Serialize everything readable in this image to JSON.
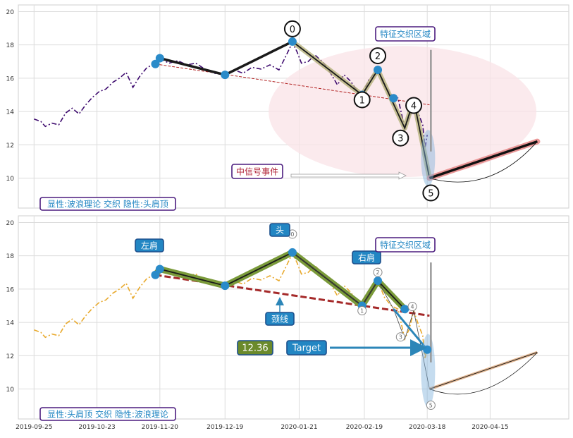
{
  "chart_data": {
    "type": "line",
    "x_ticks": [
      "2019-09-25",
      "2019-10-23",
      "2019-11-20",
      "2019-12-19",
      "2020-01-21",
      "2020-02-19",
      "2020-03-18",
      "2020-04-15"
    ],
    "y_ticks": [
      "10",
      "12",
      "14",
      "16",
      "18",
      "20"
    ],
    "ylim": [
      8.2,
      20.4
    ],
    "grid": true,
    "panels": [
      {
        "series_color": "#3d0a6e",
        "series_style": "dashdot",
        "bottom_label": "显性:波浪理论 交织 隐性:头肩顶",
        "region_label": "特征交织区域",
        "event_label": "中信号事件",
        "wave_labels": [
          "0",
          "1",
          "2",
          "3",
          "4",
          "5"
        ],
        "wave_points": [
          {
            "date": "2020-01-18",
            "value": 18.2
          },
          {
            "date": "2020-02-18",
            "value": 15.0
          },
          {
            "date": "2020-02-25",
            "value": 16.5
          },
          {
            "date": "2020-03-08",
            "value": 13.0
          },
          {
            "date": "2020-03-12",
            "value": 14.7
          },
          {
            "date": "2020-03-19",
            "value": 10.0
          }
        ]
      },
      {
        "series_color": "#e8a92c",
        "series_style": "dashdot",
        "bottom_label": "显性:头肩顶 交织 隐性:波浪理论",
        "region_label": "特征交织区域",
        "left_shoulder": "左肩",
        "head": "头",
        "right_shoulder": "右肩",
        "neckline": "颈线",
        "target_label": "Target",
        "target_value": "12.36"
      }
    ],
    "price_series": [
      {
        "date": "2019-09-25",
        "value": 13.55
      },
      {
        "date": "2019-09-28",
        "value": 13.4
      },
      {
        "date": "2019-09-30",
        "value": 13.1
      },
      {
        "date": "2019-10-03",
        "value": 13.3
      },
      {
        "date": "2019-10-06",
        "value": 13.2
      },
      {
        "date": "2019-10-09",
        "value": 13.9
      },
      {
        "date": "2019-10-12",
        "value": 14.2
      },
      {
        "date": "2019-10-15",
        "value": 13.85
      },
      {
        "date": "2019-10-18",
        "value": 14.4
      },
      {
        "date": "2019-10-21",
        "value": 14.85
      },
      {
        "date": "2019-10-24",
        "value": 15.2
      },
      {
        "date": "2019-10-27",
        "value": 15.35
      },
      {
        "date": "2019-10-30",
        "value": 15.75
      },
      {
        "date": "2019-11-02",
        "value": 16.0
      },
      {
        "date": "2019-11-05",
        "value": 16.35
      },
      {
        "date": "2019-11-08",
        "value": 15.45
      },
      {
        "date": "2019-11-11",
        "value": 16.1
      },
      {
        "date": "2019-11-14",
        "value": 16.6
      },
      {
        "date": "2019-11-17",
        "value": 16.85
      },
      {
        "date": "2019-11-20",
        "value": 17.2
      },
      {
        "date": "2019-11-24",
        "value": 16.9
      },
      {
        "date": "2019-11-28",
        "value": 17.05
      },
      {
        "date": "2019-12-02",
        "value": 16.8
      },
      {
        "date": "2019-12-06",
        "value": 16.9
      },
      {
        "date": "2019-12-10",
        "value": 16.55
      },
      {
        "date": "2019-12-14",
        "value": 16.3
      },
      {
        "date": "2019-12-19",
        "value": 16.2
      },
      {
        "date": "2019-12-23",
        "value": 16.5
      },
      {
        "date": "2019-12-27",
        "value": 16.3
      },
      {
        "date": "2019-12-31",
        "value": 16.65
      },
      {
        "date": "2020-01-04",
        "value": 16.55
      },
      {
        "date": "2020-01-08",
        "value": 16.8
      },
      {
        "date": "2020-01-12",
        "value": 16.5
      },
      {
        "date": "2020-01-15",
        "value": 17.3
      },
      {
        "date": "2020-01-18",
        "value": 18.15
      },
      {
        "date": "2020-01-20",
        "value": 17.6
      },
      {
        "date": "2020-01-22",
        "value": 16.9
      },
      {
        "date": "2020-01-25",
        "value": 17.0
      },
      {
        "date": "2020-01-28",
        "value": 17.4
      },
      {
        "date": "2020-02-01",
        "value": 16.9
      },
      {
        "date": "2020-02-04",
        "value": 16.3
      },
      {
        "date": "2020-02-07",
        "value": 15.6
      },
      {
        "date": "2020-02-10",
        "value": 16.2
      },
      {
        "date": "2020-02-13",
        "value": 15.8
      },
      {
        "date": "2020-02-16",
        "value": 15.2
      },
      {
        "date": "2020-02-18",
        "value": 15.0
      },
      {
        "date": "2020-02-21",
        "value": 15.9
      },
      {
        "date": "2020-02-25",
        "value": 16.5
      },
      {
        "date": "2020-02-28",
        "value": 15.5
      },
      {
        "date": "2020-03-02",
        "value": 15.0
      },
      {
        "date": "2020-03-05",
        "value": 14.8
      },
      {
        "date": "2020-03-08",
        "value": 13.0
      },
      {
        "date": "2020-03-10",
        "value": 13.6
      },
      {
        "date": "2020-03-12",
        "value": 14.7
      },
      {
        "date": "2020-03-14",
        "value": 13.9
      },
      {
        "date": "2020-03-16",
        "value": 13.2
      },
      {
        "date": "2020-03-17",
        "value": 11.8
      },
      {
        "date": "2020-03-18",
        "value": 12.6
      }
    ],
    "head_shoulders_points": [
      {
        "date": "2019-11-18",
        "value": 16.85
      },
      {
        "date": "2019-11-20",
        "value": 17.2
      },
      {
        "date": "2019-12-19",
        "value": 16.2
      },
      {
        "date": "2020-01-18",
        "value": 18.2
      },
      {
        "date": "2020-02-18",
        "value": 15.0
      },
      {
        "date": "2020-02-25",
        "value": 16.5
      },
      {
        "date": "2020-03-08",
        "value": 14.8
      },
      {
        "date": "2020-03-19",
        "value": 12.36
      }
    ],
    "neckline": [
      {
        "date": "2019-11-18",
        "value": 16.85
      },
      {
        "date": "2020-03-19",
        "value": 14.4
      }
    ],
    "projection": [
      {
        "date": "2020-03-19",
        "value": 10.0
      },
      {
        "date": "2020-05-06",
        "value": 12.2
      }
    ]
  }
}
